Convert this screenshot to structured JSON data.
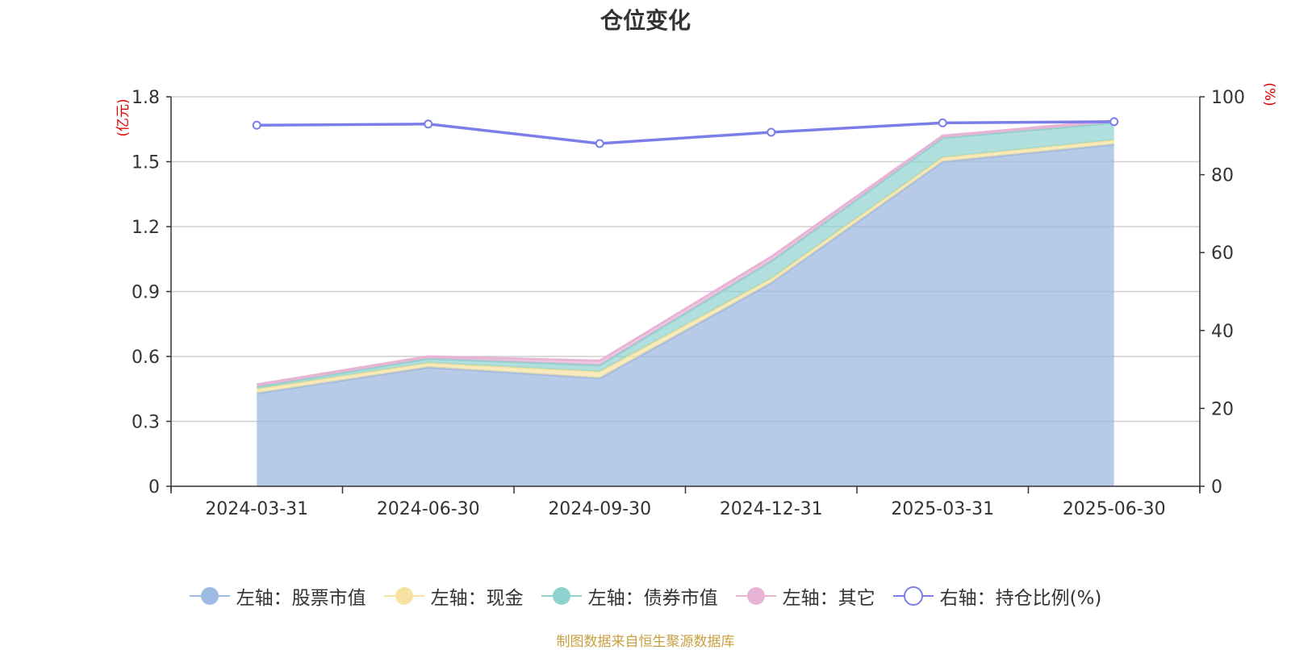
{
  "chart_data": {
    "type": "area",
    "title": "仓位变化",
    "categories": [
      "2024-03-31",
      "2024-06-30",
      "2024-09-30",
      "2024-12-31",
      "2025-03-31",
      "2025-06-30"
    ],
    "y_left": {
      "unit": "(亿元)",
      "ylim": [
        0,
        1.8
      ],
      "ticks": [
        "0",
        "0.3",
        "0.6",
        "0.9",
        "1.2",
        "1.5",
        "1.8"
      ]
    },
    "y_right": {
      "unit": "(%)",
      "ylim": [
        0,
        100
      ],
      "ticks": [
        "0",
        "20",
        "40",
        "60",
        "80",
        "100"
      ]
    },
    "stacked": true,
    "series": [
      {
        "name": "左轴：股票市值",
        "axis": "left",
        "color": "#9fbae0",
        "values": [
          0.43,
          0.55,
          0.5,
          0.94,
          1.5,
          1.58
        ]
      },
      {
        "name": "左轴：现金",
        "axis": "left",
        "color": "#f6e3a1",
        "values": [
          0.02,
          0.02,
          0.03,
          0.02,
          0.02,
          0.02
        ]
      },
      {
        "name": "左轴：债券市值",
        "axis": "left",
        "color": "#8fd1cf",
        "values": [
          0.01,
          0.02,
          0.03,
          0.08,
          0.09,
          0.08
        ]
      },
      {
        "name": "左轴：其它",
        "axis": "left",
        "color": "#e8b4d6",
        "values": [
          0.01,
          0.01,
          0.02,
          0.02,
          0.01,
          0.01
        ]
      },
      {
        "name": "右轴：持仓比例(%)",
        "axis": "right",
        "type": "line",
        "color": "#7b7ee8",
        "values": [
          92.7,
          93.0,
          88.0,
          90.9,
          93.3,
          93.6
        ]
      }
    ],
    "grid": true,
    "legend_position": "bottom"
  },
  "footer": {
    "source": "制图数据来自恒生聚源数据库"
  }
}
